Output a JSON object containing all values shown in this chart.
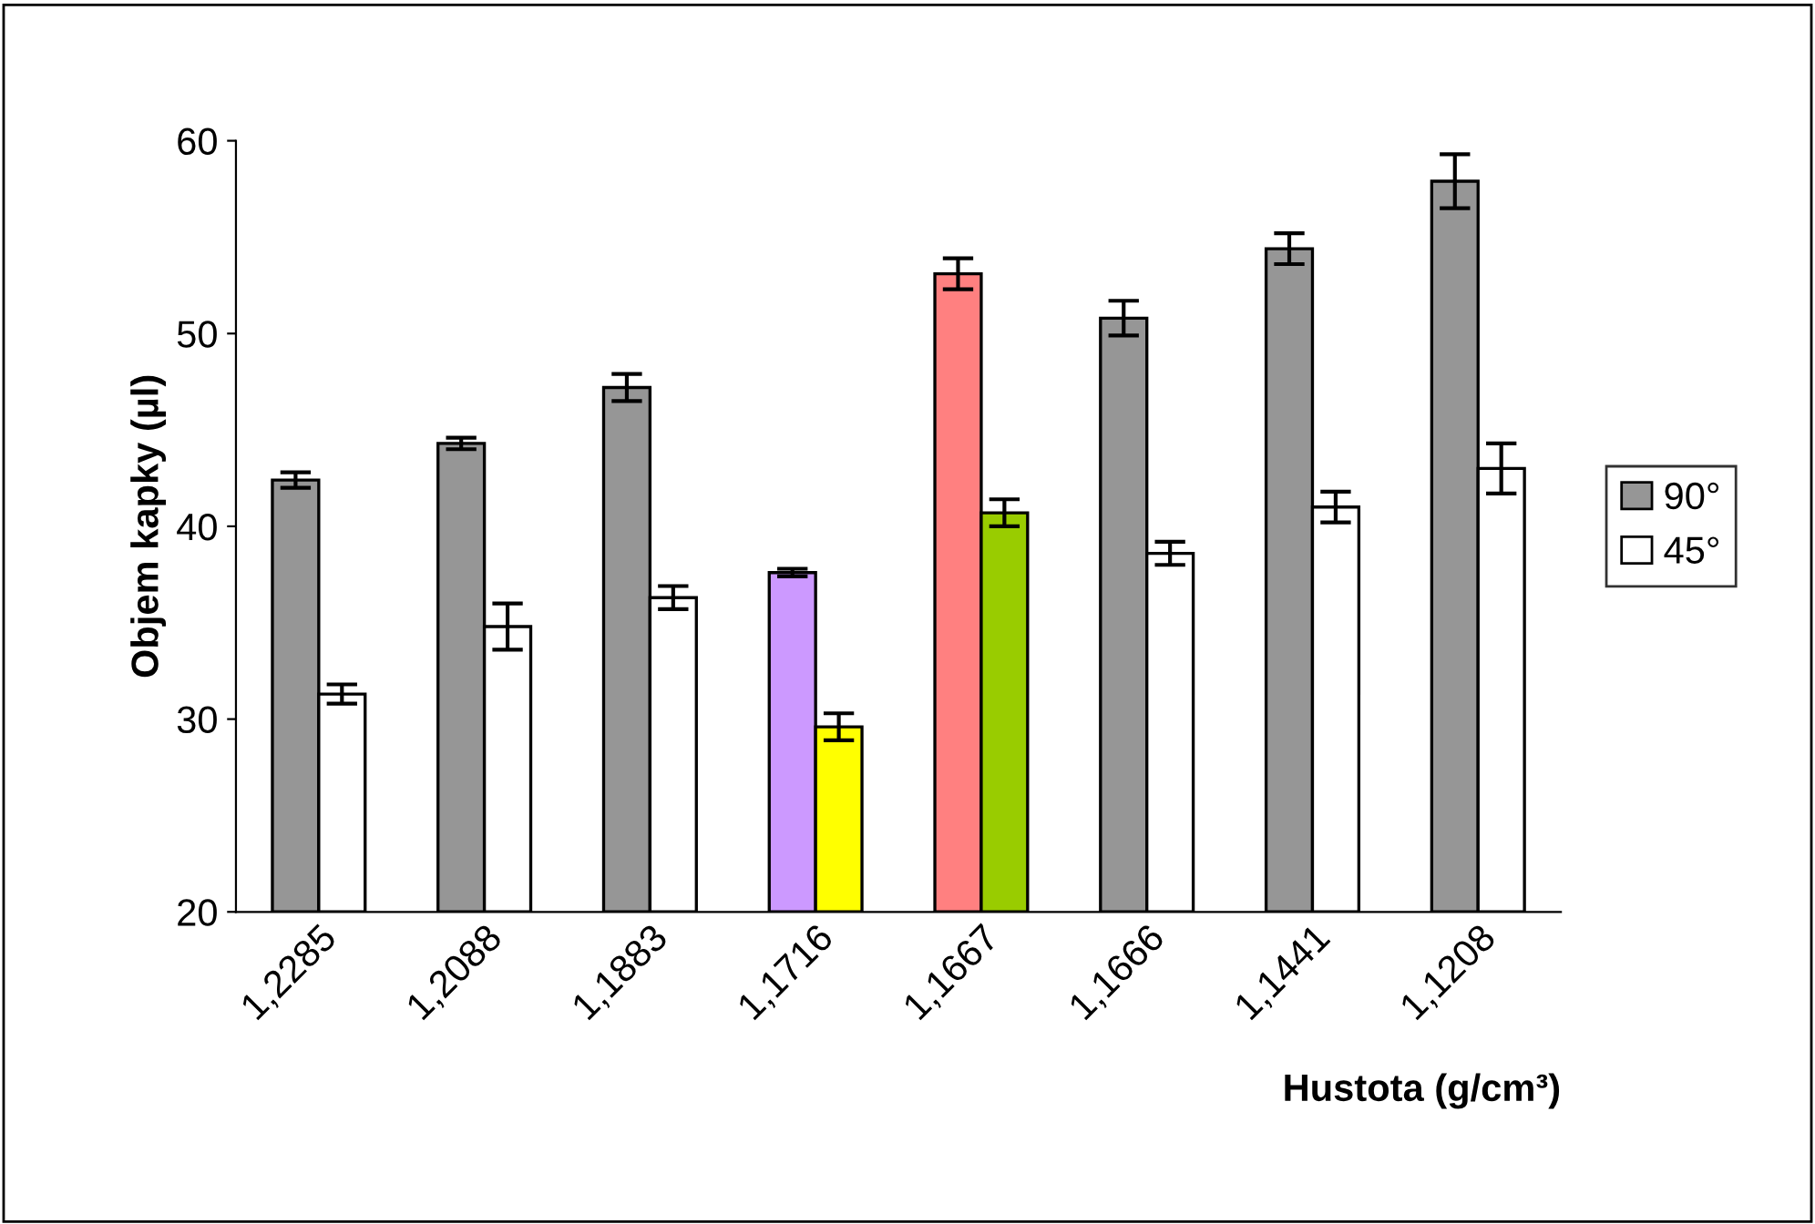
{
  "chart_data": {
    "type": "bar",
    "xlabel": "Hustota (g/cm³)",
    "ylabel": "Objem kapky (µl)",
    "categories": [
      "1,2285",
      "1,2088",
      "1,1883",
      "1,1716",
      "1,1667",
      "1,1666",
      "1,1441",
      "1,1208"
    ],
    "series": [
      {
        "name": "90°",
        "color": "#969696",
        "colors": [
          "#969696",
          "#969696",
          "#969696",
          "#cc99ff",
          "#ff8080",
          "#969696",
          "#969696",
          "#969696"
        ],
        "values": [
          42.4,
          44.3,
          47.2,
          37.6,
          53.1,
          50.8,
          54.4,
          57.9
        ],
        "errors": [
          0.4,
          0.3,
          0.7,
          0.2,
          0.8,
          0.9,
          0.8,
          1.4
        ]
      },
      {
        "name": "45°",
        "color": "#ffffff",
        "colors": [
          "#ffffff",
          "#ffffff",
          "#ffffff",
          "#ffff00",
          "#99cc00",
          "#ffffff",
          "#ffffff",
          "#ffffff"
        ],
        "values": [
          31.3,
          34.8,
          36.3,
          29.6,
          40.7,
          38.6,
          41.0,
          43.0
        ],
        "errors": [
          0.5,
          1.2,
          0.6,
          0.7,
          0.7,
          0.6,
          0.8,
          1.3
        ]
      }
    ],
    "ylim": [
      20,
      60
    ],
    "yticks": [
      20,
      30,
      40,
      50,
      60
    ],
    "grid": false,
    "legend": "right"
  }
}
